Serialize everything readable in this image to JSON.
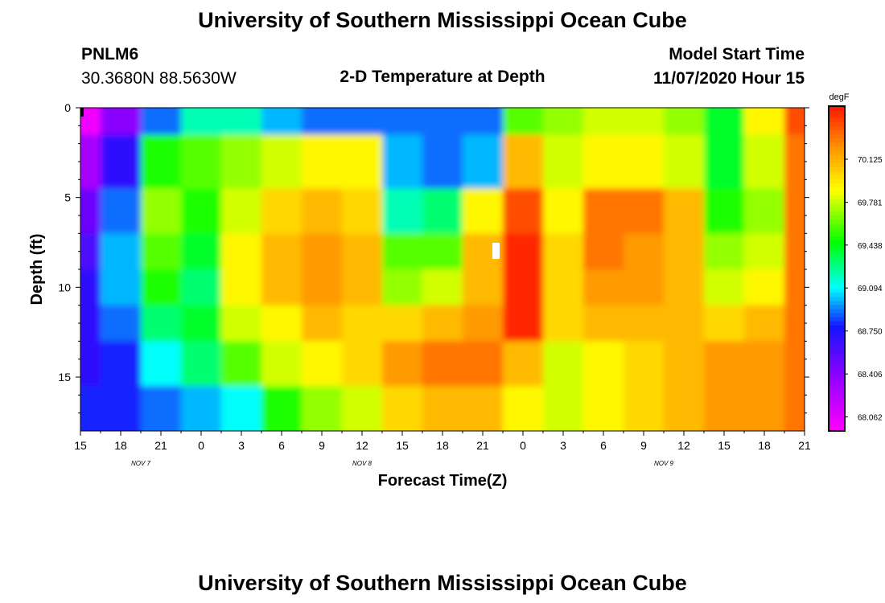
{
  "header": {
    "title_top": "University of Southern Mississippi Ocean Cube",
    "title_bottom": "University of Southern Mississippi Ocean Cube",
    "station_id": "PNLM6",
    "station_coords": "30.3680N 88.5630W",
    "plot_title": "2-D Temperature at Depth",
    "model_start_label": "Model Start Time",
    "model_start_value": "11/07/2020 Hour 15"
  },
  "chart_data": {
    "type": "heatmap",
    "title": "2-D Temperature at Depth",
    "xlabel": "Forecast Time(Z)",
    "ylabel": "Depth (ft)",
    "x_ticks": [
      "15",
      "18",
      "21",
      "0",
      "3",
      "6",
      "9",
      "12",
      "15",
      "18",
      "21",
      "0",
      "3",
      "6",
      "9",
      "12",
      "15",
      "18",
      "21"
    ],
    "x_day_labels": [
      {
        "label": "NOV  7",
        "tick_index": 1.5
      },
      {
        "label": "NOV  8",
        "tick_index": 7
      },
      {
        "label": "NOV  9",
        "tick_index": 14.5
      }
    ],
    "x_range_hours": [
      0,
      54
    ],
    "y_ticks": [
      0,
      5,
      10,
      15
    ],
    "y_range_ft": [
      0,
      18
    ],
    "colorbar": {
      "unit": "degF",
      "tick_values": [
        "70.125",
        "69.781",
        "69.438",
        "69.094",
        "68.750",
        "68.406",
        "68.062"
      ],
      "range": [
        67.95,
        70.55
      ]
    },
    "temperature_samples": {
      "depth_levels_ft": [
        0,
        3,
        6,
        8,
        10,
        12,
        14,
        17
      ],
      "rows": [
        [
          68.0,
          68.4,
          68.9,
          69.2,
          69.2,
          69.0,
          68.9,
          68.9,
          68.9,
          68.9,
          68.9,
          69.6,
          69.7,
          69.8,
          69.8,
          69.7,
          69.4,
          69.9,
          70.4
        ],
        [
          68.3,
          68.7,
          69.5,
          69.6,
          69.7,
          69.8,
          69.9,
          69.9,
          69.0,
          68.9,
          69.0,
          70.1,
          69.8,
          69.9,
          69.9,
          69.8,
          69.4,
          69.8,
          70.3
        ],
        [
          68.5,
          68.9,
          69.7,
          69.5,
          69.8,
          70.0,
          70.1,
          70.0,
          69.2,
          69.3,
          69.9,
          70.4,
          69.9,
          70.3,
          70.3,
          70.1,
          69.5,
          69.7,
          70.3
        ],
        [
          68.6,
          69.0,
          69.6,
          69.4,
          69.9,
          70.1,
          70.2,
          70.1,
          69.6,
          69.6,
          70.1,
          70.5,
          70.0,
          70.3,
          70.2,
          70.1,
          69.7,
          69.8,
          70.3
        ],
        [
          68.7,
          69.0,
          69.5,
          69.3,
          69.9,
          70.1,
          70.2,
          70.1,
          69.7,
          69.8,
          70.1,
          70.5,
          70.0,
          70.2,
          70.2,
          70.1,
          69.8,
          69.9,
          70.3
        ],
        [
          68.7,
          68.9,
          69.3,
          69.4,
          69.8,
          69.9,
          70.1,
          70.0,
          70.0,
          70.1,
          70.2,
          70.5,
          70.0,
          70.1,
          70.1,
          70.1,
          70.0,
          70.1,
          70.3
        ],
        [
          68.7,
          68.8,
          69.1,
          69.3,
          69.6,
          69.8,
          69.9,
          70.0,
          70.2,
          70.3,
          70.3,
          70.1,
          69.8,
          69.9,
          70.0,
          70.1,
          70.2,
          70.2,
          70.3
        ],
        [
          68.8,
          68.8,
          68.9,
          69.0,
          69.1,
          69.5,
          69.7,
          69.8,
          70.0,
          70.1,
          70.1,
          69.9,
          69.8,
          69.9,
          70.0,
          70.1,
          70.2,
          70.2,
          70.3
        ]
      ]
    }
  }
}
